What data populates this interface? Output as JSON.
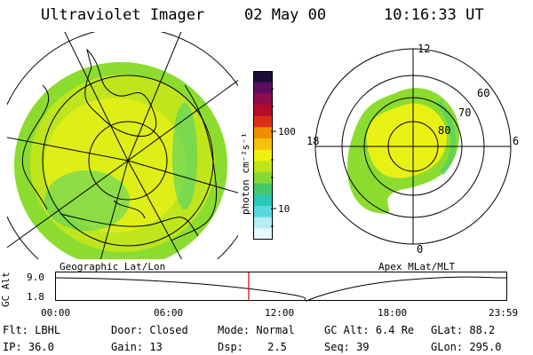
{
  "header": {
    "instrument": "Ultraviolet Imager",
    "date": "02 May 00",
    "time": "10:16:33 UT"
  },
  "colorbar": {
    "unit_label": "photon cm⁻²s⁻¹",
    "tick_high": "100",
    "tick_low": "10",
    "colors": [
      "#e8f8fc",
      "#b6ecf4",
      "#58d8e0",
      "#2cc8b8",
      "#44c86c",
      "#88d834",
      "#c0e418",
      "#eef010",
      "#f8c00c",
      "#f08c00",
      "#d83018",
      "#b40c2c",
      "#8c0c4c",
      "#5c0c60",
      "#1c0c38"
    ]
  },
  "geo_map": {
    "label": "Geographic Lat/Lon",
    "aurora_colors": [
      "#4cd06c",
      "#8cdc30",
      "#c4e61c",
      "#e8f014"
    ]
  },
  "polar_map": {
    "label": "Apex MLat/MLT",
    "mlt_labels": [
      "12",
      "18",
      "6",
      "0"
    ],
    "lat_labels": [
      "60",
      "70",
      "80"
    ]
  },
  "altitude_plot": {
    "axis_title": "GC Alt",
    "y_high": "9.0",
    "y_low": "1.8",
    "x_ticks": [
      "00:00",
      "06:00",
      "12:00",
      "18:00",
      "23:59"
    ],
    "marker_color": "#e01010",
    "marker_time_hours": 10.28
  },
  "info": {
    "filter_label": "Flt:",
    "filter_value": "LBHL",
    "door_label": "Door:",
    "door_value": "Closed",
    "mode_label": "Mode:",
    "mode_value": "Normal",
    "gcalt_label": "GC Alt:",
    "gcalt_value": "6.4 Re",
    "glat_label": "GLat:",
    "glat_value": "88.2",
    "ip_label": "IP:",
    "ip_value": "36.0",
    "gain_label": "Gain:",
    "gain_value": "13",
    "dsp_label": "Dsp:",
    "dsp_value": "2.5",
    "seq_label": "Seq:",
    "seq_value": "39",
    "glon_label": "GLon:",
    "glon_value": "295.0"
  }
}
